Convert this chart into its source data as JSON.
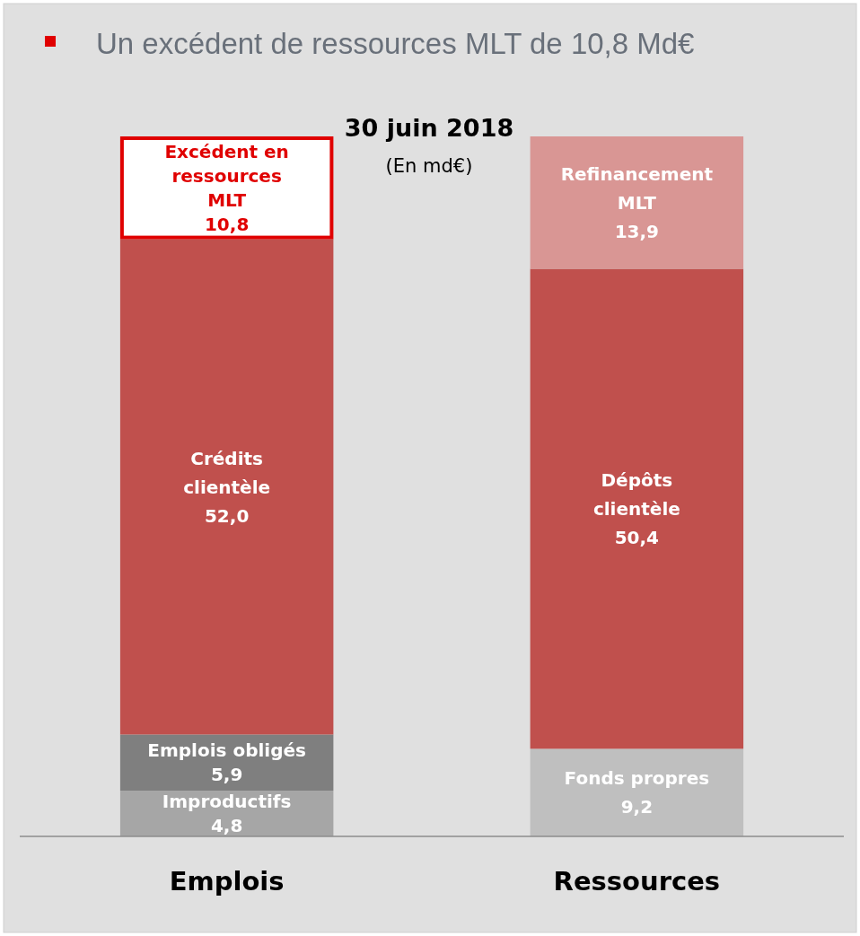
{
  "chart_data": {
    "type": "bar",
    "stacked": true,
    "title": "Un excédent de ressources MLT de 10,8 Md€",
    "subtitle": "30 juin 2018",
    "annotations": [
      "(En md€)"
    ],
    "categories": [
      "Emplois",
      "Ressources"
    ],
    "series": [
      {
        "name": "Improductifs",
        "color": "#a6a6a6",
        "values": [
          4.8,
          null
        ],
        "value_labels": [
          "4,8",
          null
        ]
      },
      {
        "name": "Fonds propres",
        "color": "#bfbfbf",
        "values": [
          null,
          9.2
        ],
        "value_labels": [
          null,
          "9,2"
        ]
      },
      {
        "name": "Emplois obligés",
        "color": "#7f7f7f",
        "values": [
          5.9,
          null
        ],
        "value_labels": [
          "5,9",
          null
        ]
      },
      {
        "name": "Crédits\nclientèle",
        "color": "#c0504d",
        "values": [
          52.0,
          null
        ],
        "value_labels": [
          "52,0",
          null
        ]
      },
      {
        "name": "Dépôts\nclientèle",
        "color": "#c0504d",
        "values": [
          null,
          50.4
        ],
        "value_labels": [
          null,
          "50,4"
        ]
      },
      {
        "name": "Excédent en\nressources\nMLT",
        "color": "#ffffff",
        "values": [
          10.8,
          null
        ],
        "value_labels": [
          "10,8",
          null
        ]
      },
      {
        "name": "Refinancement\nMLT",
        "color": "#d99694",
        "values": [
          null,
          13.9
        ],
        "value_labels": [
          null,
          "13,9"
        ]
      }
    ]
  }
}
